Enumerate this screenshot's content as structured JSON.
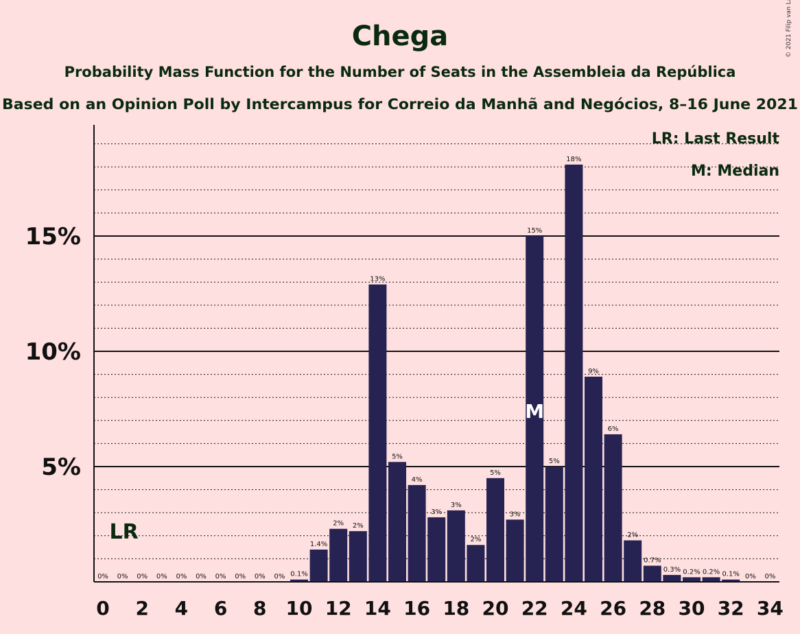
{
  "chart_data": {
    "type": "bar",
    "title": "Chega",
    "subtitle": "Probability Mass Function for the Number of Seats in the Assembleia da República",
    "subtitle2": "Based on an Opinion Poll by Intercampus for Correio da Manhã and Negócios, 8–16 June 2021",
    "copyright": "© 2021 Filip van Laenen",
    "legend": {
      "lr": "LR: Last Result",
      "m": "M: Median",
      "position": "top-right"
    },
    "x": [
      0,
      1,
      2,
      3,
      4,
      5,
      6,
      7,
      8,
      9,
      10,
      11,
      12,
      13,
      14,
      15,
      16,
      17,
      18,
      19,
      20,
      21,
      22,
      23,
      24,
      25,
      26,
      27,
      28,
      29,
      30,
      31,
      32,
      33,
      34
    ],
    "values": [
      0,
      0,
      0,
      0,
      0,
      0,
      0,
      0,
      0,
      0,
      0.1,
      1.4,
      2.3,
      2.2,
      12.9,
      5.2,
      4.2,
      2.8,
      3.1,
      1.6,
      4.5,
      2.7,
      15.0,
      5.0,
      18.1,
      8.9,
      6.4,
      1.8,
      0.7,
      0.3,
      0.2,
      0.2,
      0.1,
      0,
      0
    ],
    "labels": [
      "0%",
      "0%",
      "0%",
      "0%",
      "0%",
      "0%",
      "0%",
      "0%",
      "0%",
      "0%",
      "0.1%",
      "1.4%",
      "2%",
      "2%",
      "13%",
      "5%",
      "4%",
      "3%",
      "3%",
      "2%",
      "5%",
      "3%",
      "15%",
      "5%",
      "18%",
      "9%",
      "6%",
      "2%",
      "0.7%",
      "0.3%",
      "0.2%",
      "0.2%",
      "0.1%",
      "0%",
      "0%"
    ],
    "x_tick_labels": [
      "0",
      "2",
      "4",
      "6",
      "8",
      "10",
      "12",
      "14",
      "16",
      "18",
      "20",
      "22",
      "24",
      "26",
      "28",
      "30",
      "32",
      "34"
    ],
    "y_major_ticks": [
      5,
      10,
      15
    ],
    "y_tick_labels": [
      "5%",
      "10%",
      "15%"
    ],
    "ylim": [
      0,
      19.5
    ],
    "last_result": {
      "seat": 1,
      "marker": "LR"
    },
    "median": {
      "seat": 22,
      "marker": "M"
    },
    "colors": {
      "bar": "#262352",
      "background": "#ffe0e0",
      "title": "#0a2a10",
      "median_marker": "#ffffff"
    }
  }
}
